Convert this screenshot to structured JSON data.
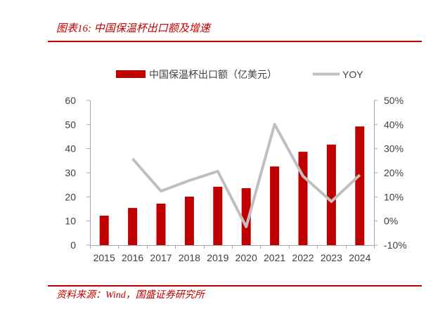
{
  "colors": {
    "accent": "#c00000",
    "bar": "#c00000",
    "yoy_line": "#bfbfbf",
    "axis": "#a6a6a6"
  },
  "footer": {
    "source": "资料来源：Wind，国盛证券研究所"
  },
  "chart_data": {
    "type": "bar",
    "title": "图表16: 中国保温杯出口额及增速",
    "categories": [
      "2015",
      "2016",
      "2017",
      "2018",
      "2019",
      "2020",
      "2021",
      "2022",
      "2023",
      "2024"
    ],
    "series": [
      {
        "name": "中国保温杯出口额（亿美元）",
        "type": "bar",
        "axis": "left",
        "values": [
          12.2,
          15.4,
          17.2,
          20.1,
          24.2,
          23.6,
          32.6,
          38.7,
          41.7,
          49.2
        ]
      },
      {
        "name": "YOY",
        "type": "line",
        "axis": "right",
        "unit": "%",
        "values": [
          null,
          25.8,
          12.4,
          16.8,
          20.6,
          -2.4,
          40.1,
          18.6,
          8.1,
          19.1
        ]
      }
    ],
    "y_left": {
      "range": [
        0,
        60
      ],
      "ticks": [
        "0",
        "10",
        "20",
        "30",
        "40",
        "50",
        "60"
      ]
    },
    "y_right": {
      "range": [
        -10,
        50
      ],
      "ticks": [
        "-10%",
        "0%",
        "10%",
        "20%",
        "30%",
        "40%",
        "50%"
      ]
    },
    "legend": "top-center",
    "grid": false
  }
}
